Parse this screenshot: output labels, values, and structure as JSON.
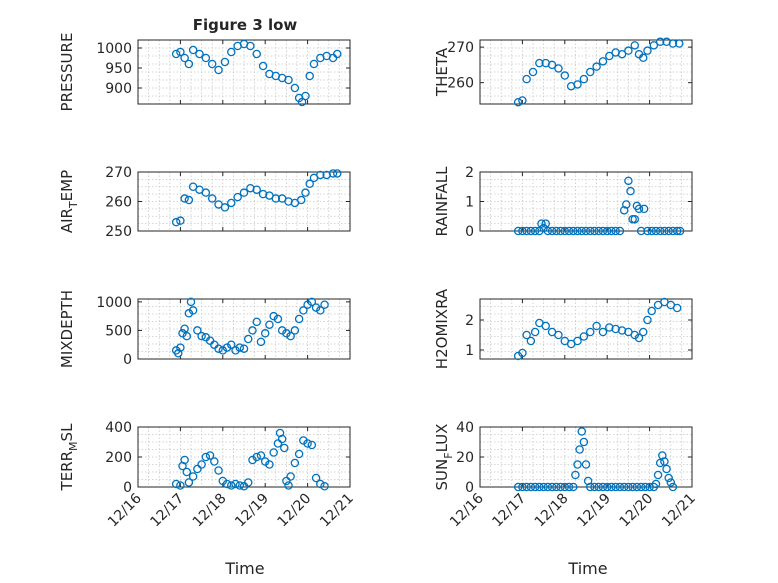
{
  "figure": {
    "title": "Figure 3 low",
    "x_axis_label": "Time",
    "marker_color": "#0072BD",
    "x_ticks": [
      {
        "day": 16,
        "label": "12/16"
      },
      {
        "day": 17,
        "label": "12/17"
      },
      {
        "day": 18,
        "label": "12/18"
      },
      {
        "day": 19,
        "label": "12/19"
      },
      {
        "day": 20,
        "label": "12/20"
      },
      {
        "day": 21,
        "label": "12/21"
      }
    ],
    "xlim_days": [
      16,
      21
    ]
  },
  "chart_data": [
    {
      "type": "scatter",
      "ylabel": "PRESSURE",
      "title": "Figure 3 low",
      "ylim": [
        860,
        1020
      ],
      "yticks": [
        900,
        950,
        1000
      ],
      "points": [
        [
          16.9,
          985
        ],
        [
          17,
          990
        ],
        [
          17.1,
          975
        ],
        [
          17.2,
          960
        ],
        [
          17.3,
          995
        ],
        [
          17.45,
          985
        ],
        [
          17.6,
          975
        ],
        [
          17.75,
          960
        ],
        [
          17.9,
          945
        ],
        [
          18.05,
          965
        ],
        [
          18.2,
          990
        ],
        [
          18.35,
          1005
        ],
        [
          18.5,
          1010
        ],
        [
          18.65,
          1005
        ],
        [
          18.8,
          985
        ],
        [
          18.95,
          955
        ],
        [
          19.1,
          935
        ],
        [
          19.25,
          930
        ],
        [
          19.4,
          925
        ],
        [
          19.55,
          920
        ],
        [
          19.7,
          900
        ],
        [
          19.8,
          875
        ],
        [
          19.87,
          865
        ],
        [
          19.95,
          880
        ],
        [
          20.05,
          930
        ],
        [
          20.15,
          960
        ],
        [
          20.3,
          975
        ],
        [
          20.45,
          980
        ],
        [
          20.6,
          975
        ],
        [
          20.7,
          985
        ]
      ]
    },
    {
      "type": "scatter",
      "ylabel": "THETA",
      "ylim": [
        254,
        272
      ],
      "yticks": [
        260,
        270
      ],
      "points": [
        [
          16.9,
          254.5
        ],
        [
          17,
          255
        ],
        [
          17.1,
          261
        ],
        [
          17.25,
          263
        ],
        [
          17.4,
          265.5
        ],
        [
          17.55,
          265.5
        ],
        [
          17.7,
          265
        ],
        [
          17.85,
          264
        ],
        [
          18,
          262
        ],
        [
          18.15,
          259
        ],
        [
          18.3,
          259.5
        ],
        [
          18.45,
          261
        ],
        [
          18.6,
          263
        ],
        [
          18.75,
          264.5
        ],
        [
          18.9,
          266
        ],
        [
          19.05,
          267.5
        ],
        [
          19.2,
          268.5
        ],
        [
          19.35,
          268
        ],
        [
          19.5,
          269
        ],
        [
          19.65,
          270.5
        ],
        [
          19.75,
          268
        ],
        [
          19.85,
          267
        ],
        [
          19.95,
          269
        ],
        [
          20.1,
          270.5
        ],
        [
          20.25,
          271.5
        ],
        [
          20.4,
          271.5
        ],
        [
          20.55,
          271
        ],
        [
          20.7,
          271
        ]
      ]
    },
    {
      "type": "scatter",
      "ylabel": "AIR_TEMP",
      "ylim": [
        250,
        270
      ],
      "yticks": [
        250,
        260,
        270
      ],
      "points": [
        [
          16.9,
          253
        ],
        [
          17,
          253.5
        ],
        [
          17.1,
          261
        ],
        [
          17.2,
          260.5
        ],
        [
          17.3,
          265
        ],
        [
          17.45,
          264
        ],
        [
          17.6,
          263
        ],
        [
          17.75,
          261
        ],
        [
          17.9,
          259
        ],
        [
          18.05,
          258
        ],
        [
          18.2,
          259.5
        ],
        [
          18.35,
          261.5
        ],
        [
          18.5,
          263
        ],
        [
          18.65,
          264.5
        ],
        [
          18.8,
          264
        ],
        [
          18.95,
          262.5
        ],
        [
          19.1,
          262
        ],
        [
          19.25,
          261
        ],
        [
          19.4,
          261
        ],
        [
          19.55,
          260
        ],
        [
          19.7,
          259.5
        ],
        [
          19.85,
          260.5
        ],
        [
          19.95,
          263
        ],
        [
          20.05,
          266
        ],
        [
          20.15,
          268
        ],
        [
          20.3,
          269
        ],
        [
          20.45,
          269
        ],
        [
          20.6,
          269.5
        ],
        [
          20.7,
          269.5
        ]
      ]
    },
    {
      "type": "scatter",
      "ylabel": "RAINFALL",
      "ylim": [
        0,
        2
      ],
      "yticks": [
        0,
        1,
        2
      ],
      "points": [
        [
          16.9,
          0
        ],
        [
          17,
          0
        ],
        [
          17.1,
          0
        ],
        [
          17.2,
          0
        ],
        [
          17.3,
          0
        ],
        [
          17.4,
          0
        ],
        [
          17.45,
          0.25
        ],
        [
          17.5,
          0.1
        ],
        [
          17.55,
          0.25
        ],
        [
          17.6,
          0
        ],
        [
          17.7,
          0
        ],
        [
          17.8,
          0
        ],
        [
          17.9,
          0
        ],
        [
          18,
          0
        ],
        [
          18.1,
          0
        ],
        [
          18.2,
          0
        ],
        [
          18.3,
          0
        ],
        [
          18.4,
          0
        ],
        [
          18.5,
          0
        ],
        [
          18.6,
          0
        ],
        [
          18.7,
          0
        ],
        [
          18.8,
          0
        ],
        [
          18.9,
          0
        ],
        [
          19,
          0
        ],
        [
          19.1,
          0
        ],
        [
          19.2,
          0
        ],
        [
          19.3,
          0
        ],
        [
          19.4,
          0.7
        ],
        [
          19.45,
          0.9
        ],
        [
          19.5,
          1.7
        ],
        [
          19.55,
          1.35
        ],
        [
          19.6,
          0.4
        ],
        [
          19.65,
          0.4
        ],
        [
          19.7,
          0.85
        ],
        [
          19.75,
          0.75
        ],
        [
          19.8,
          0
        ],
        [
          19.87,
          0.75
        ],
        [
          19.95,
          0
        ],
        [
          20.05,
          0
        ],
        [
          20.15,
          0
        ],
        [
          20.25,
          0
        ],
        [
          20.35,
          0
        ],
        [
          20.45,
          0
        ],
        [
          20.55,
          0
        ],
        [
          20.65,
          0
        ],
        [
          20.72,
          0
        ]
      ]
    },
    {
      "type": "scatter",
      "ylabel": "MIXDEPTH",
      "ylim": [
        0,
        1050
      ],
      "yticks": [
        0,
        500,
        1000
      ],
      "points": [
        [
          16.9,
          150
        ],
        [
          16.95,
          100
        ],
        [
          17,
          200
        ],
        [
          17.05,
          450
        ],
        [
          17.1,
          530
        ],
        [
          17.15,
          400
        ],
        [
          17.2,
          800
        ],
        [
          17.25,
          1000
        ],
        [
          17.3,
          850
        ],
        [
          17.4,
          500
        ],
        [
          17.5,
          400
        ],
        [
          17.6,
          380
        ],
        [
          17.7,
          320
        ],
        [
          17.8,
          250
        ],
        [
          17.9,
          180
        ],
        [
          18,
          150
        ],
        [
          18.1,
          200
        ],
        [
          18.2,
          250
        ],
        [
          18.3,
          150
        ],
        [
          18.4,
          200
        ],
        [
          18.5,
          180
        ],
        [
          18.6,
          350
        ],
        [
          18.7,
          500
        ],
        [
          18.8,
          650
        ],
        [
          18.9,
          300
        ],
        [
          19,
          450
        ],
        [
          19.1,
          600
        ],
        [
          19.2,
          750
        ],
        [
          19.3,
          700
        ],
        [
          19.4,
          500
        ],
        [
          19.5,
          450
        ],
        [
          19.6,
          400
        ],
        [
          19.7,
          500
        ],
        [
          19.8,
          700
        ],
        [
          19.9,
          850
        ],
        [
          20,
          950
        ],
        [
          20.1,
          1000
        ],
        [
          20.2,
          900
        ],
        [
          20.3,
          850
        ],
        [
          20.4,
          950
        ]
      ]
    },
    {
      "type": "scatter",
      "ylabel": "H2OMIXRA",
      "ylim": [
        0.7,
        2.7
      ],
      "yticks": [
        1,
        2
      ],
      "points": [
        [
          16.9,
          0.8
        ],
        [
          17,
          0.9
        ],
        [
          17.1,
          1.5
        ],
        [
          17.2,
          1.3
        ],
        [
          17.3,
          1.6
        ],
        [
          17.4,
          1.9
        ],
        [
          17.55,
          1.8
        ],
        [
          17.7,
          1.6
        ],
        [
          17.85,
          1.5
        ],
        [
          18,
          1.3
        ],
        [
          18.15,
          1.2
        ],
        [
          18.3,
          1.3
        ],
        [
          18.45,
          1.45
        ],
        [
          18.6,
          1.6
        ],
        [
          18.75,
          1.8
        ],
        [
          18.9,
          1.6
        ],
        [
          19.05,
          1.75
        ],
        [
          19.2,
          1.7
        ],
        [
          19.35,
          1.65
        ],
        [
          19.5,
          1.6
        ],
        [
          19.65,
          1.5
        ],
        [
          19.75,
          1.4
        ],
        [
          19.85,
          1.6
        ],
        [
          19.95,
          2
        ],
        [
          20.05,
          2.3
        ],
        [
          20.2,
          2.5
        ],
        [
          20.35,
          2.6
        ],
        [
          20.5,
          2.5
        ],
        [
          20.65,
          2.4
        ]
      ]
    },
    {
      "type": "scatter",
      "ylabel": "TERR_MSL",
      "ylim": [
        0,
        400
      ],
      "yticks": [
        0,
        200,
        400
      ],
      "points": [
        [
          16.9,
          20
        ],
        [
          17,
          10
        ],
        [
          17.05,
          140
        ],
        [
          17.1,
          180
        ],
        [
          17.15,
          100
        ],
        [
          17.2,
          30
        ],
        [
          17.3,
          70
        ],
        [
          17.4,
          120
        ],
        [
          17.5,
          150
        ],
        [
          17.6,
          200
        ],
        [
          17.7,
          210
        ],
        [
          17.8,
          170
        ],
        [
          17.9,
          110
        ],
        [
          18,
          40
        ],
        [
          18.1,
          20
        ],
        [
          18.2,
          10
        ],
        [
          18.3,
          20
        ],
        [
          18.4,
          10
        ],
        [
          18.5,
          5
        ],
        [
          18.6,
          30
        ],
        [
          18.7,
          180
        ],
        [
          18.8,
          200
        ],
        [
          18.9,
          210
        ],
        [
          19,
          170
        ],
        [
          19.1,
          150
        ],
        [
          19.2,
          230
        ],
        [
          19.3,
          290
        ],
        [
          19.35,
          360
        ],
        [
          19.4,
          320
        ],
        [
          19.45,
          260
        ],
        [
          19.5,
          40
        ],
        [
          19.55,
          10
        ],
        [
          19.6,
          70
        ],
        [
          19.7,
          160
        ],
        [
          19.8,
          220
        ],
        [
          19.9,
          310
        ],
        [
          20,
          290
        ],
        [
          20.1,
          280
        ],
        [
          20.2,
          60
        ],
        [
          20.3,
          20
        ],
        [
          20.4,
          5
        ]
      ]
    },
    {
      "type": "scatter",
      "ylabel": "SUN_FLUX",
      "ylim": [
        0,
        40
      ],
      "yticks": [
        0,
        20,
        40
      ],
      "points": [
        [
          16.9,
          0
        ],
        [
          17,
          0
        ],
        [
          17.1,
          0
        ],
        [
          17.2,
          0
        ],
        [
          17.3,
          0
        ],
        [
          17.4,
          0
        ],
        [
          17.5,
          0
        ],
        [
          17.6,
          0
        ],
        [
          17.7,
          0
        ],
        [
          17.8,
          0
        ],
        [
          17.9,
          0
        ],
        [
          18,
          0
        ],
        [
          18.1,
          0
        ],
        [
          18.2,
          0
        ],
        [
          18.25,
          8
        ],
        [
          18.3,
          15
        ],
        [
          18.35,
          25
        ],
        [
          18.4,
          37
        ],
        [
          18.45,
          30
        ],
        [
          18.5,
          15
        ],
        [
          18.55,
          4
        ],
        [
          18.6,
          0
        ],
        [
          18.7,
          0
        ],
        [
          18.8,
          0
        ],
        [
          18.9,
          0
        ],
        [
          19,
          0
        ],
        [
          19.1,
          0
        ],
        [
          19.2,
          0
        ],
        [
          19.3,
          0
        ],
        [
          19.4,
          0
        ],
        [
          19.5,
          0
        ],
        [
          19.6,
          0
        ],
        [
          19.7,
          0
        ],
        [
          19.8,
          0
        ],
        [
          19.9,
          0
        ],
        [
          20,
          0
        ],
        [
          20.1,
          0
        ],
        [
          20.15,
          2
        ],
        [
          20.2,
          8
        ],
        [
          20.25,
          16
        ],
        [
          20.3,
          21
        ],
        [
          20.35,
          17
        ],
        [
          20.4,
          12
        ],
        [
          20.45,
          6
        ],
        [
          20.5,
          3
        ],
        [
          20.55,
          0
        ]
      ]
    }
  ]
}
